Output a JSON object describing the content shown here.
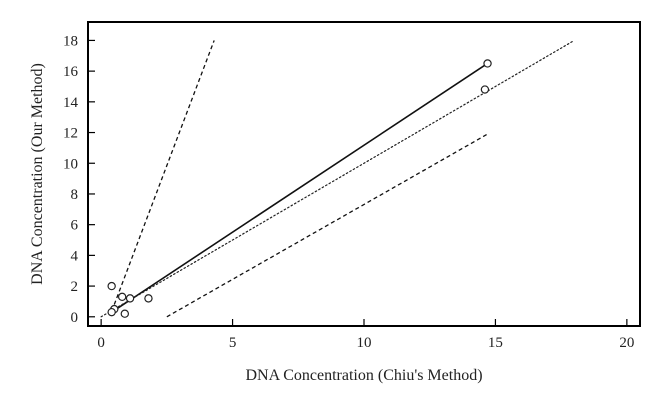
{
  "chart_data": {
    "type": "scatter",
    "xlabel": "DNA Concentration (Chiu's Method)",
    "ylabel": "DNA Concentration (Our Method)",
    "xlim": [
      -0.5,
      20.5
    ],
    "ylim": [
      -0.6,
      19.2
    ],
    "xticks": [
      0,
      5,
      10,
      15,
      20
    ],
    "yticks": [
      0,
      2,
      4,
      6,
      8,
      10,
      12,
      14,
      16,
      18
    ],
    "grid": false,
    "series": [
      {
        "type": "scatter",
        "marker": "open-circle",
        "x": [
          0.4,
          0.5,
          0.4,
          0.8,
          0.9,
          1.1,
          1.8,
          14.6,
          14.7
        ],
        "y": [
          2.0,
          0.5,
          0.3,
          1.3,
          0.2,
          1.2,
          1.2,
          14.8,
          16.5
        ]
      },
      {
        "type": "line",
        "style": "solid",
        "x": [
          0.4,
          14.7
        ],
        "y": [
          0.3,
          16.5
        ]
      },
      {
        "type": "line",
        "style": "dotted",
        "x": [
          0.0,
          18.0
        ],
        "y": [
          0.0,
          18.0
        ]
      },
      {
        "type": "line",
        "style": "dashed",
        "x": [
          0.5,
          4.3
        ],
        "y": [
          0.8,
          18.0
        ]
      },
      {
        "type": "line",
        "style": "dashed",
        "x": [
          2.5,
          14.7
        ],
        "y": [
          0.0,
          11.9
        ]
      }
    ]
  }
}
